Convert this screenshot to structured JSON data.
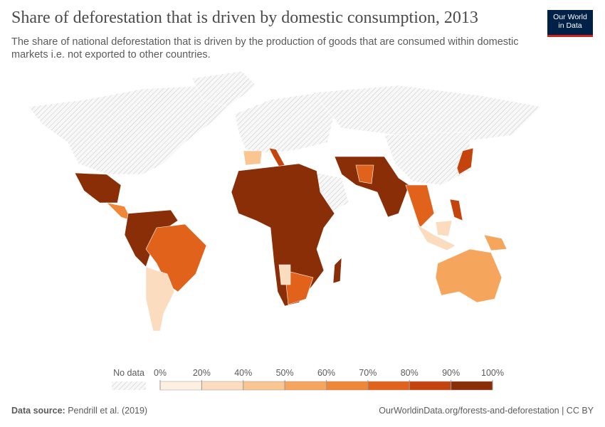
{
  "header": {
    "title": "Share of deforestation that is driven by domestic consumption, 2013",
    "subtitle": "The share of national deforestation that is driven by the production of goods that are consumed within domestic markets i.e. not exported to other countries.",
    "logo": [
      "Our World",
      "in Data"
    ]
  },
  "legend": {
    "no_data_label": "No data",
    "ticks": [
      {
        "value": 0,
        "label": "0%"
      },
      {
        "value": 20,
        "label": "20%"
      },
      {
        "value": 40,
        "label": "40%"
      },
      {
        "value": 50,
        "label": "50%"
      },
      {
        "value": 60,
        "label": "60%"
      },
      {
        "value": 70,
        "label": "70%"
      },
      {
        "value": 80,
        "label": "80%"
      },
      {
        "value": 90,
        "label": "90%"
      },
      {
        "value": 100,
        "label": "100%"
      }
    ],
    "colors": [
      "#fef0e1",
      "#fbdcbf",
      "#f9c590",
      "#f6a55d",
      "#f08738",
      "#e1621b",
      "#c5440e",
      "#8a2e07"
    ]
  },
  "footer": {
    "source_label": "Data source:",
    "source": "Pendrill et al. (2019)",
    "url": "OurWorldinData.org/forests-and-deforestation | CC BY"
  }
}
